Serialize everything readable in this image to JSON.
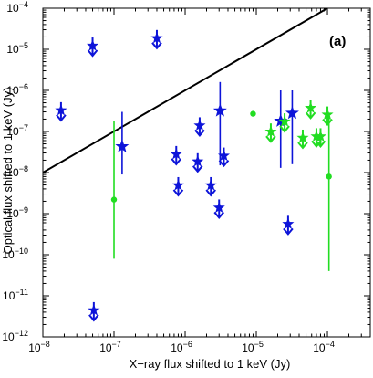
{
  "chart_data": {
    "type": "scatter",
    "panel_label": "(a)",
    "xlabel": "X−ray flux shifted to 1 keV (Jy)",
    "ylabel": "Optical flux shifted to 1 keV (Jy)",
    "x_scale": "log",
    "y_scale": "log",
    "xlim": [
      1e-08,
      0.0004
    ],
    "ylim": [
      1e-12,
      0.0001
    ],
    "grid": false,
    "x_ticks": [
      {
        "value": 1e-08,
        "base": "10",
        "exp": "−8"
      },
      {
        "value": 1e-07,
        "base": "10",
        "exp": "−7"
      },
      {
        "value": 1e-06,
        "base": "10",
        "exp": "−6"
      },
      {
        "value": 1e-05,
        "base": "10",
        "exp": "−5"
      },
      {
        "value": 0.0001,
        "base": "10",
        "exp": "−4"
      }
    ],
    "y_ticks": [
      {
        "value": 1e-12,
        "base": "10",
        "exp": "−12"
      },
      {
        "value": 1e-11,
        "base": "10",
        "exp": "−11"
      },
      {
        "value": 1e-10,
        "base": "10",
        "exp": "−10"
      },
      {
        "value": 1e-09,
        "base": "10",
        "exp": "−9"
      },
      {
        "value": 1e-08,
        "base": "10",
        "exp": "−8"
      },
      {
        "value": 1e-07,
        "base": "10",
        "exp": "−7"
      },
      {
        "value": 1e-06,
        "base": "10",
        "exp": "−6"
      },
      {
        "value": 1e-05,
        "base": "10",
        "exp": "−5"
      },
      {
        "value": 0.0001,
        "base": "10",
        "exp": "−4"
      }
    ],
    "reference_line": {
      "x": [
        1e-08,
        0.0001
      ],
      "y": [
        1e-08,
        0.0001
      ],
      "color": "#000000"
    },
    "series": [
      {
        "color": "#0d14d9",
        "points": [
          {
            "x": 1.8e-08,
            "y": 2.8e-07,
            "marker": "upper-limit"
          },
          {
            "x": 5e-08,
            "y": 1.05e-05,
            "marker": "upper-limit"
          },
          {
            "x": 5.2e-08,
            "y": 3.8e-12,
            "marker": "upper-limit"
          },
          {
            "x": 1.3e-07,
            "y": 4.3e-08,
            "yerr_low": 9e-09,
            "yerr_high": 3e-07,
            "marker": "star"
          },
          {
            "x": 4e-07,
            "y": 1.6e-05,
            "marker": "upper-limit"
          },
          {
            "x": 7.5e-07,
            "y": 2.4e-08,
            "marker": "upper-limit"
          },
          {
            "x": 8e-07,
            "y": 4.2e-09,
            "marker": "upper-limit"
          },
          {
            "x": 1.5e-06,
            "y": 1.6e-08,
            "marker": "upper-limit"
          },
          {
            "x": 1.6e-06,
            "y": 1.2e-07,
            "marker": "upper-limit"
          },
          {
            "x": 2.3e-06,
            "y": 4.2e-09,
            "marker": "upper-limit"
          },
          {
            "x": 3e-06,
            "y": 1.2e-09,
            "marker": "upper-limit"
          },
          {
            "x": 3.1e-06,
            "y": 3.2e-07,
            "yerr_low": 1.5e-08,
            "yerr_high": 1.6e-06,
            "marker": "star"
          },
          {
            "x": 3.5e-06,
            "y": 2.2e-08,
            "marker": "upper-limit"
          },
          {
            "x": 2.2e-05,
            "y": 1.8e-07,
            "yerr_low": 1.3e-08,
            "yerr_high": 1e-06,
            "marker": "star"
          },
          {
            "x": 2.8e-05,
            "y": 4.8e-10,
            "marker": "upper-limit"
          },
          {
            "x": 3.2e-05,
            "y": 2.8e-07,
            "yerr_low": 1.6e-08,
            "yerr_high": 1e-06,
            "marker": "star"
          }
        ]
      },
      {
        "color": "#22dd22",
        "points": [
          {
            "x": 1e-07,
            "y": 2.2e-09,
            "yerr_low": 8e-11,
            "yerr_high": 1.8e-07,
            "marker": "dot"
          },
          {
            "x": 9e-06,
            "y": 2.7e-07,
            "marker": "dot"
          },
          {
            "x": 1.6e-05,
            "y": 8.5e-08,
            "marker": "upper-limit"
          },
          {
            "x": 2.5e-05,
            "y": 1.5e-07,
            "marker": "upper-limit"
          },
          {
            "x": 4.5e-05,
            "y": 6e-08,
            "marker": "upper-limit"
          },
          {
            "x": 5.8e-05,
            "y": 3.2e-07,
            "marker": "upper-limit"
          },
          {
            "x": 7e-05,
            "y": 6.5e-08,
            "marker": "upper-limit"
          },
          {
            "x": 8e-05,
            "y": 6.5e-08,
            "marker": "upper-limit"
          },
          {
            "x": 0.0001,
            "y": 2.2e-07,
            "marker": "upper-limit"
          },
          {
            "x": 0.000105,
            "y": 8e-09,
            "yerr_low": 4e-11,
            "yerr_high": 2.5e-07,
            "marker": "dot"
          }
        ]
      }
    ]
  }
}
